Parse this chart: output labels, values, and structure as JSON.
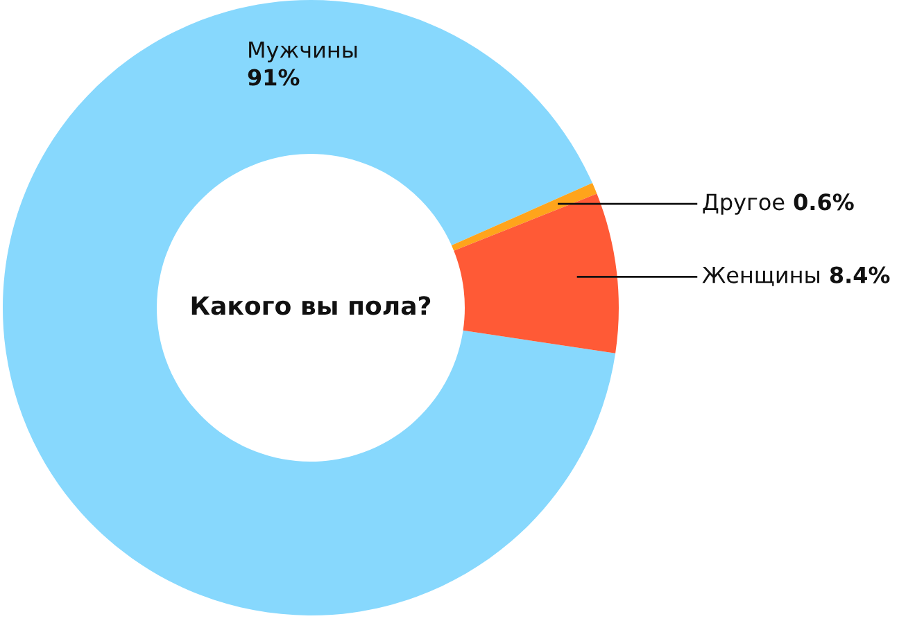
{
  "chart_data": {
    "type": "donut",
    "title": "Какого вы пола?",
    "categories": [
      "Мужчины",
      "Другое",
      "Женщины"
    ],
    "values": [
      91,
      0.6,
      8.4
    ],
    "colors": [
      "#87d8fd",
      "#ffa41b",
      "#ff5a36"
    ],
    "value_labels": [
      "91%",
      "0.6%",
      "8.4%"
    ],
    "legend": false
  }
}
